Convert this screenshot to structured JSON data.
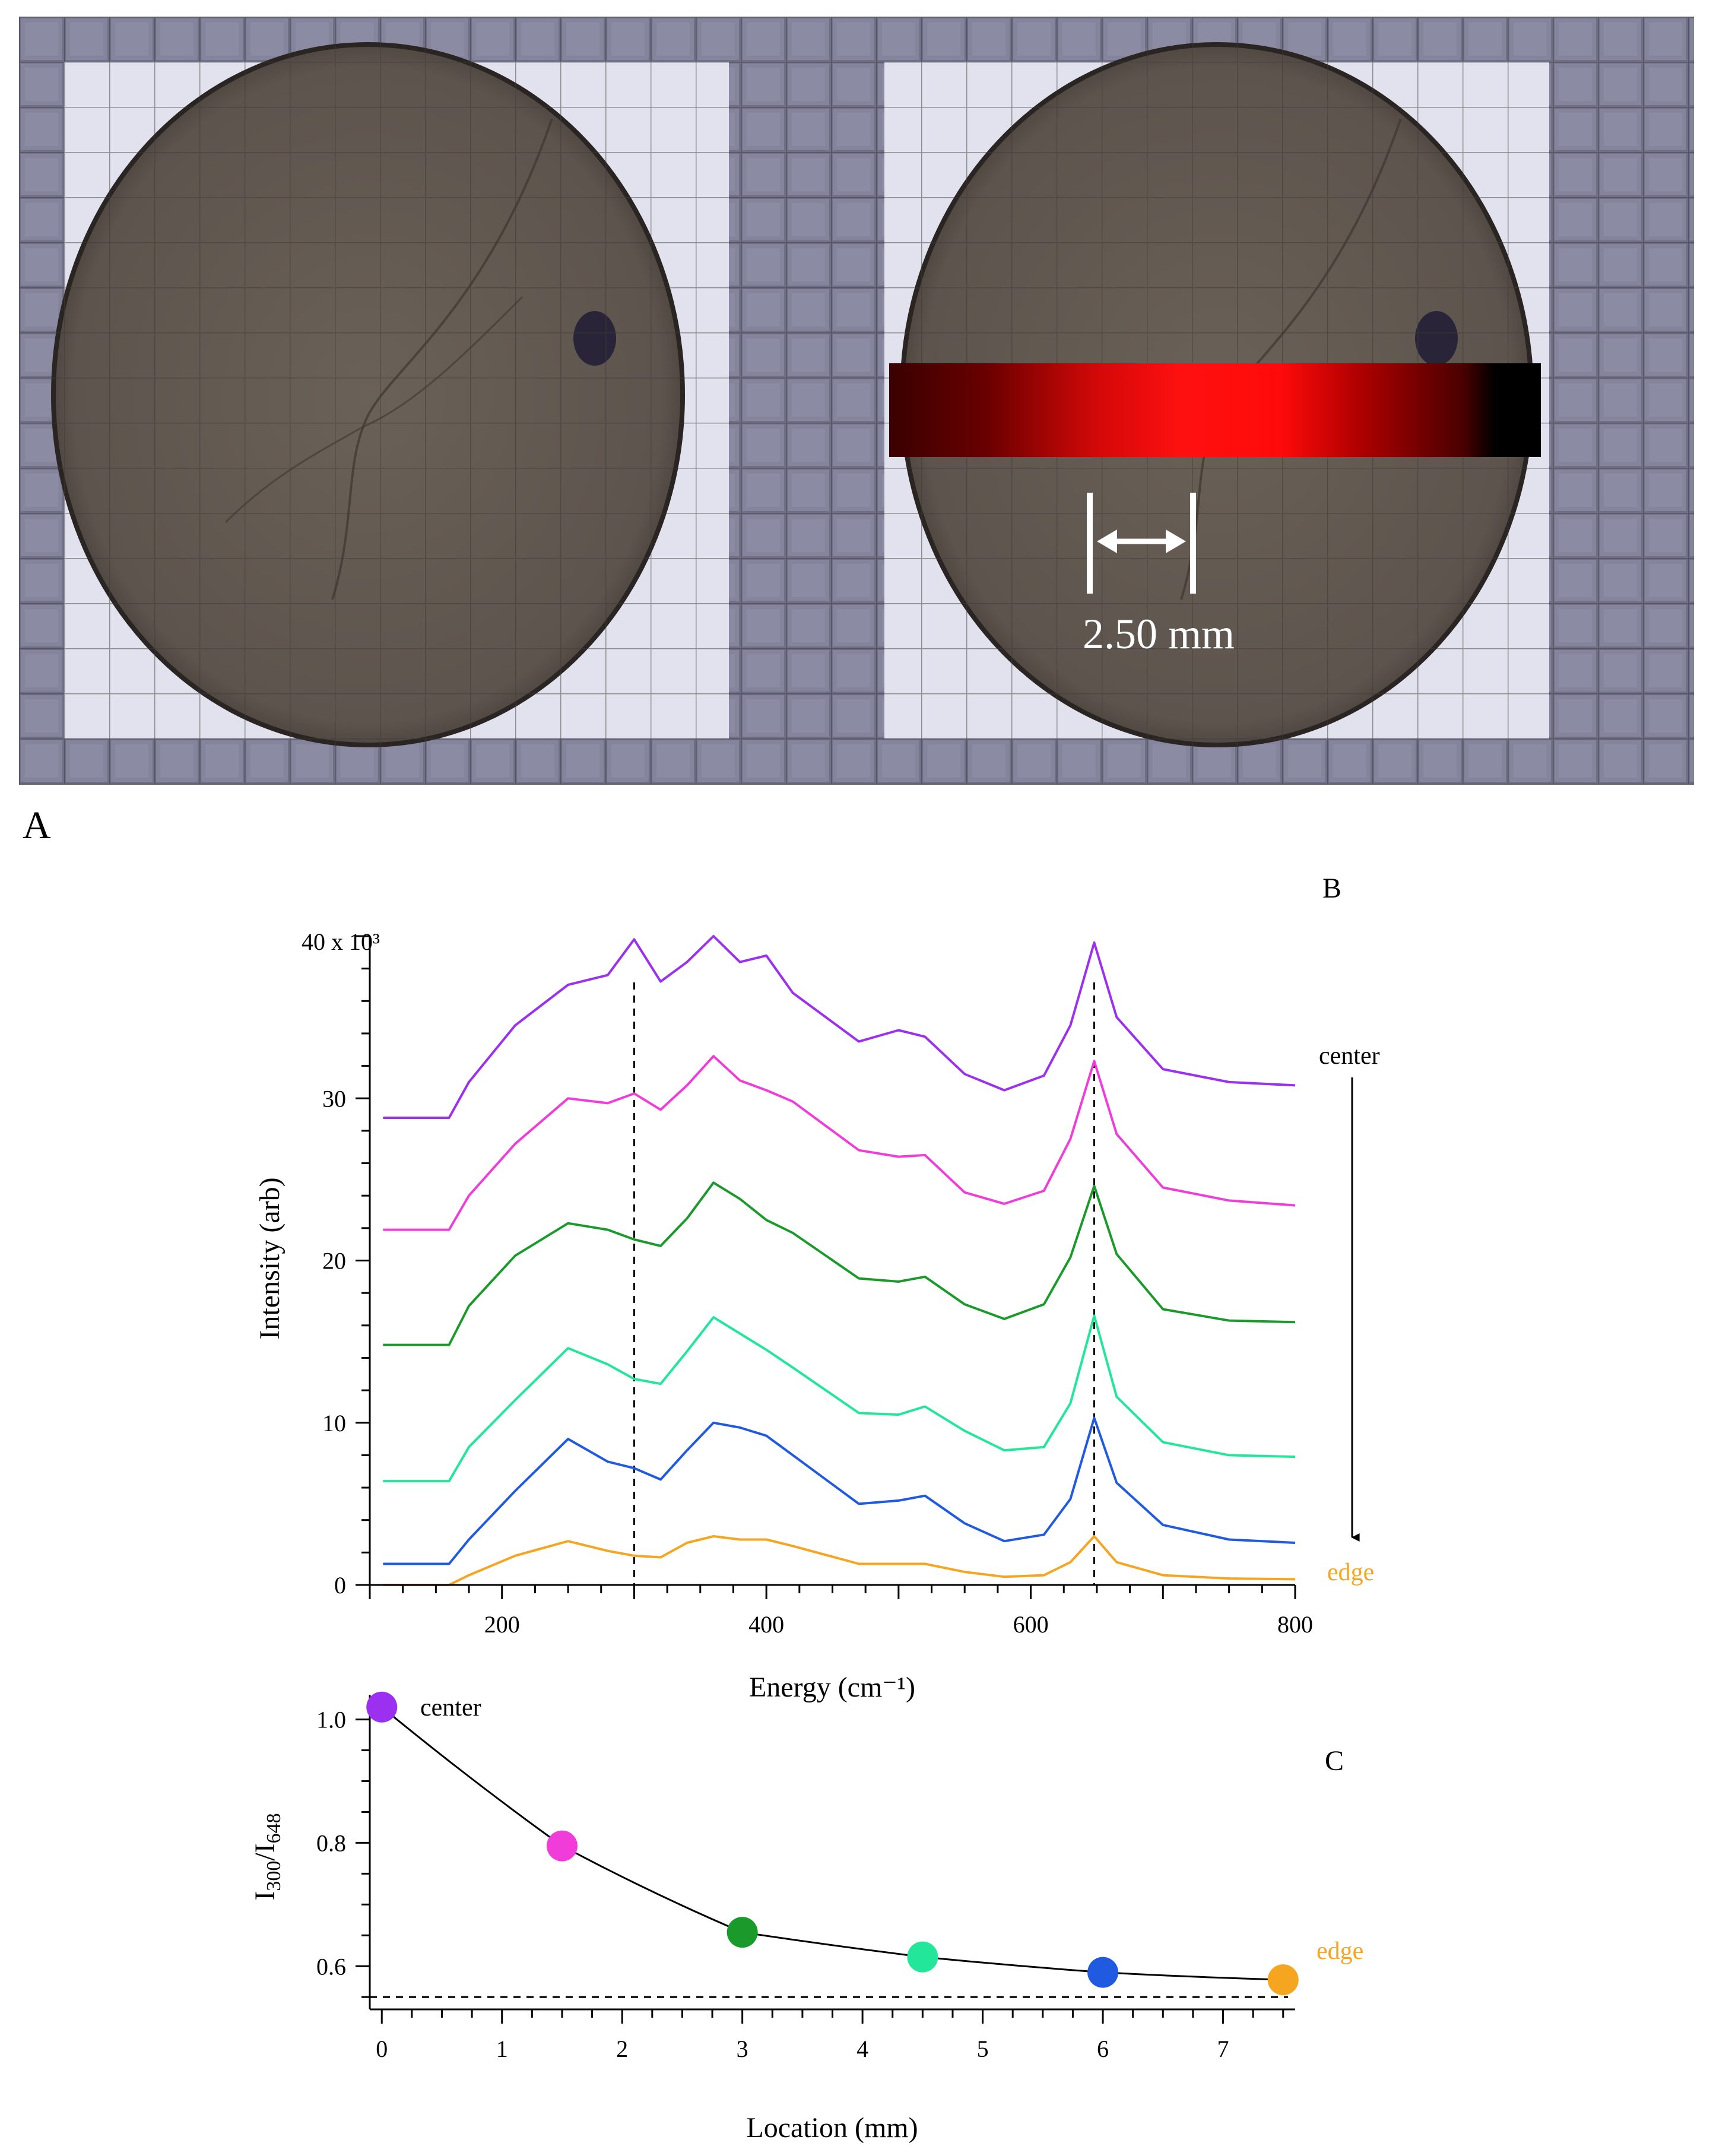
{
  "panels": {
    "a": {
      "label": "A",
      "scale_bar_text": "2.50 mm"
    },
    "b": {
      "label": "B"
    },
    "c": {
      "label": "C"
    }
  },
  "colors": {
    "purple": "#9b30f0",
    "magenta": "#f03cd8",
    "green": "#1a9a2a",
    "mint": "#22e69a",
    "blue": "#1f5ae0",
    "orange": "#f5a51f"
  },
  "chart_data": [
    {
      "panel": "B",
      "type": "line",
      "xlabel": "Energy (cm⁻¹)",
      "ylabel": "Intensity (arb)",
      "xlim": [
        100,
        800
      ],
      "ylim": [
        0,
        40000
      ],
      "x_ticks": [
        200,
        400,
        600,
        800
      ],
      "y_ticks": [
        0,
        10,
        20,
        30
      ],
      "y_top_label": "40 x 10³",
      "reference_lines_x": [
        300,
        648
      ],
      "annotations": {
        "top": "center",
        "bottom": "edge"
      },
      "series": [
        {
          "color": "#9b30f0",
          "x": [
            110,
            160,
            175,
            210,
            250,
            280,
            300,
            320,
            340,
            360,
            380,
            400,
            420,
            470,
            500,
            520,
            550,
            580,
            610,
            630,
            648,
            665,
            700,
            750,
            800
          ],
          "values": [
            28800,
            28800,
            31000,
            34500,
            37000,
            37600,
            39800,
            37200,
            38400,
            40000,
            38400,
            38800,
            36500,
            33500,
            34200,
            33800,
            31500,
            30500,
            31400,
            34500,
            39600,
            35000,
            31800,
            31000,
            30800
          ]
        },
        {
          "color": "#f03cd8",
          "x": [
            110,
            160,
            175,
            210,
            250,
            280,
            300,
            320,
            340,
            360,
            380,
            400,
            420,
            470,
            500,
            520,
            550,
            580,
            610,
            630,
            648,
            665,
            700,
            750,
            800
          ],
          "values": [
            21900,
            21900,
            24000,
            27200,
            30000,
            29700,
            30300,
            29300,
            30800,
            32600,
            31100,
            30500,
            29800,
            26800,
            26400,
            26500,
            24200,
            23500,
            24300,
            27500,
            32300,
            27800,
            24500,
            23700,
            23400
          ]
        },
        {
          "color": "#1a9a2a",
          "x": [
            110,
            160,
            175,
            210,
            250,
            280,
            300,
            320,
            340,
            360,
            380,
            400,
            420,
            470,
            500,
            520,
            550,
            580,
            610,
            630,
            648,
            665,
            700,
            750,
            800
          ],
          "values": [
            14800,
            14800,
            17200,
            20300,
            22300,
            21900,
            21300,
            20900,
            22600,
            24800,
            23800,
            22500,
            21700,
            18900,
            18700,
            19000,
            17300,
            16400,
            17300,
            20200,
            24600,
            20400,
            17000,
            16300,
            16200
          ]
        },
        {
          "color": "#22e69a",
          "x": [
            110,
            160,
            175,
            210,
            250,
            280,
            300,
            320,
            340,
            360,
            380,
            400,
            420,
            470,
            500,
            520,
            550,
            580,
            610,
            630,
            648,
            665,
            700,
            750,
            800
          ],
          "values": [
            6400,
            6400,
            8500,
            11400,
            14600,
            13600,
            12700,
            12400,
            14400,
            16500,
            15500,
            14500,
            13400,
            10600,
            10500,
            11000,
            9500,
            8300,
            8500,
            11200,
            16600,
            11600,
            8800,
            8000,
            7900
          ]
        },
        {
          "color": "#1f5ae0",
          "x": [
            110,
            160,
            175,
            210,
            250,
            280,
            300,
            320,
            340,
            360,
            380,
            400,
            420,
            470,
            500,
            520,
            550,
            580,
            610,
            630,
            648,
            665,
            700,
            750,
            800
          ],
          "values": [
            1300,
            1300,
            2800,
            5800,
            9000,
            7600,
            7200,
            6500,
            8300,
            10000,
            9700,
            9200,
            8000,
            5000,
            5200,
            5500,
            3800,
            2700,
            3100,
            5300,
            10300,
            6300,
            3700,
            2800,
            2600
          ]
        },
        {
          "color": "#f5a51f",
          "x": [
            110,
            160,
            175,
            210,
            250,
            280,
            300,
            320,
            340,
            360,
            380,
            400,
            420,
            470,
            500,
            520,
            550,
            580,
            610,
            630,
            648,
            665,
            700,
            750,
            800
          ],
          "values": [
            0,
            0,
            600,
            1800,
            2700,
            2100,
            1800,
            1700,
            2600,
            3000,
            2800,
            2800,
            2400,
            1300,
            1300,
            1300,
            800,
            500,
            600,
            1400,
            3000,
            1400,
            600,
            400,
            350
          ]
        }
      ]
    },
    {
      "panel": "C",
      "type": "scatter",
      "xlabel": "Location (mm)",
      "ylabel_main": "I",
      "ylabel_sub1": "300",
      "ylabel_sep": "/I",
      "ylabel_sub2": "648",
      "xlim": [
        -0.1,
        7.6
      ],
      "ylim": [
        0.53,
        1.04
      ],
      "x_ticks": [
        0,
        1,
        2,
        3,
        4,
        5,
        6,
        7
      ],
      "y_ticks": [
        0.6,
        0.8,
        1.0
      ],
      "reference_line_y": 0.55,
      "annotations": {
        "first": "center",
        "last": "edge"
      },
      "x": [
        0,
        1.5,
        3,
        4.5,
        6,
        7.5
      ],
      "values": [
        1.02,
        0.795,
        0.655,
        0.615,
        0.59,
        0.578
      ],
      "point_colors": [
        "#9b30f0",
        "#f03cd8",
        "#1a9a2a",
        "#22e69a",
        "#1f5ae0",
        "#f5a51f"
      ]
    }
  ]
}
